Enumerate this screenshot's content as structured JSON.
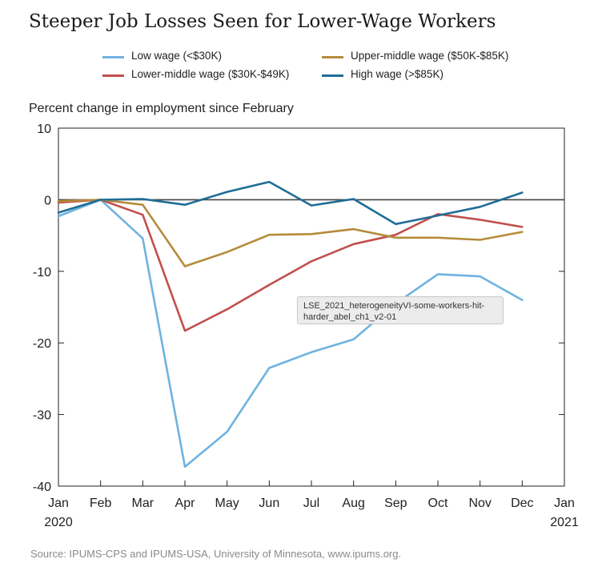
{
  "chart_data": {
    "type": "line",
    "title": "Steeper Job Losses Seen for Lower-Wage Workers",
    "ylabel": "Percent change in employment since February",
    "source": "Source: IPUMS-CPS and IPUMS-USA, University of Minnesota, www.ipums.org.",
    "ylim": [
      -40,
      10
    ],
    "yticks": [
      "10",
      "0",
      "-10",
      "-20",
      "-30",
      "-40"
    ],
    "x_ticks": [
      {
        "month": "Jan",
        "year": "2020"
      },
      {
        "month": "Feb",
        "year": ""
      },
      {
        "month": "Mar",
        "year": ""
      },
      {
        "month": "Apr",
        "year": ""
      },
      {
        "month": "May",
        "year": ""
      },
      {
        "month": "Jun",
        "year": ""
      },
      {
        "month": "Jul",
        "year": ""
      },
      {
        "month": "Aug",
        "year": ""
      },
      {
        "month": "Sep",
        "year": ""
      },
      {
        "month": "Oct",
        "year": ""
      },
      {
        "month": "Nov",
        "year": ""
      },
      {
        "month": "Dec",
        "year": ""
      },
      {
        "month": "Jan",
        "year": "2021"
      }
    ],
    "series": [
      {
        "name": "Low wage (<$30K)",
        "color": "#6fb3e0",
        "values": [
          -2.3,
          0,
          -5.4,
          -37.3,
          -32.4,
          -23.5,
          -21.3,
          -19.5,
          -14.5,
          -10.4,
          -10.7,
          -14.0
        ]
      },
      {
        "name": "Lower-middle wage ($30K-$49K)",
        "color": "#c0504d",
        "values": [
          -0.4,
          0,
          -2.1,
          -18.3,
          -15.3,
          -11.9,
          -8.6,
          -6.2,
          -4.9,
          -2.0,
          -2.8,
          -3.8
        ]
      },
      {
        "name": "Upper-middle wage ($50K-$85K)",
        "color": "#b58b3b",
        "values": [
          -0.2,
          0,
          -0.7,
          -9.3,
          -7.3,
          -4.9,
          -4.8,
          -4.1,
          -5.3,
          -5.3,
          -5.6,
          -4.5
        ]
      },
      {
        "name": "High wage (>$85K)",
        "color": "#1f6d96",
        "values": [
          -1.8,
          0,
          0.1,
          -0.7,
          1.1,
          2.5,
          -0.8,
          0.1,
          -3.4,
          -2.2,
          -1.0,
          1.0
        ]
      }
    ],
    "zero_line": true,
    "grid": false,
    "legend_position": "top"
  },
  "tooltip": {
    "text": "LSE_2021_heterogeneityVI-some-workers-hit-harder_abel_ch1_v2-01"
  }
}
